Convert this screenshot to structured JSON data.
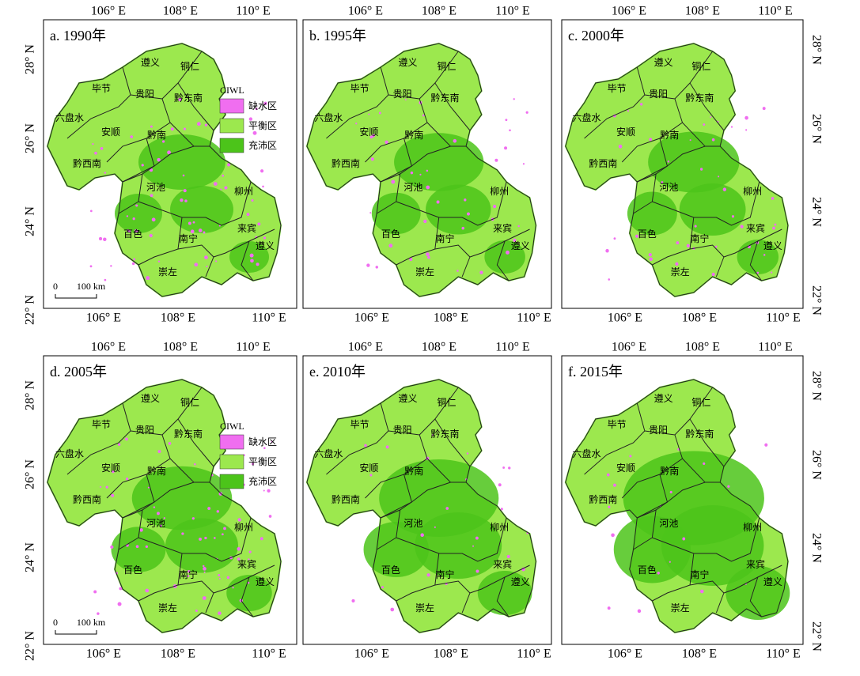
{
  "panels": [
    {
      "title": "a. 1990年",
      "y_axis_side": "left",
      "show_legend": true,
      "show_scale": true
    },
    {
      "title": "b. 1995年",
      "y_axis_side": "none",
      "show_legend": false,
      "show_scale": false
    },
    {
      "title": "c. 2000年",
      "y_axis_side": "right",
      "show_legend": false,
      "show_scale": false
    },
    {
      "title": "d. 2005年",
      "y_axis_side": "left",
      "show_legend": true,
      "show_scale": true
    },
    {
      "title": "e. 2010年",
      "y_axis_side": "none",
      "show_legend": false,
      "show_scale": false
    },
    {
      "title": "f. 2015年",
      "y_axis_side": "right",
      "show_legend": false,
      "show_scale": false
    }
  ],
  "x_tick_labels": [
    "106° E",
    "108° E",
    "110° E"
  ],
  "y_tick_labels": [
    "28° N",
    "26° N",
    "24° N",
    "22° N"
  ],
  "regions": [
    "遵义",
    "铜仁",
    "毕节",
    "贵阳",
    "黔东南",
    "六盘水",
    "安顺",
    "黔南",
    "黔西南",
    "河池",
    "柳州",
    "百色",
    "南宁",
    "来宾",
    "遵义",
    "崇左"
  ],
  "legend": {
    "title": "CIWL",
    "items": [
      {
        "label": "缺水区",
        "color": "#f06ef0"
      },
      {
        "label": "平衡区",
        "color": "#9ce84e"
      },
      {
        "label": "充沛区",
        "color": "#4cc41a"
      }
    ]
  },
  "scale_bar": {
    "start": "0",
    "end": "100 km"
  }
}
